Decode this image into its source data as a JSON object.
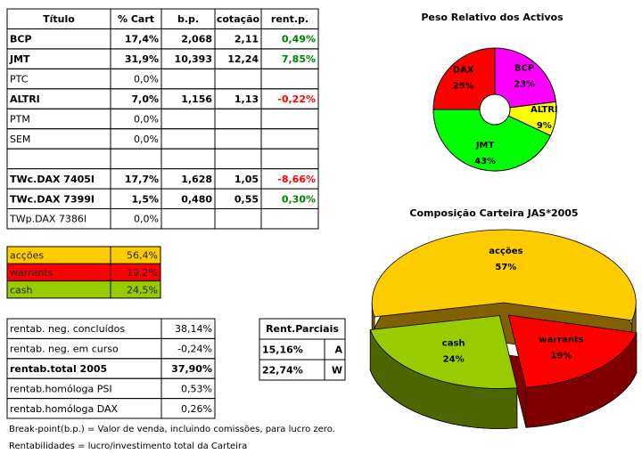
{
  "chart_data": [
    {
      "type": "donut",
      "title": "Peso Relativo dos Activos",
      "categories": [
        "BCP",
        "ALTRI",
        "JMT",
        "DAX"
      ],
      "values": [
        23,
        9,
        43,
        25
      ],
      "value_labels": [
        "23%",
        "9%",
        "43%",
        "25%"
      ],
      "colors": [
        "#ff00ff",
        "#ffff00",
        "#00ff00",
        "#ff0000"
      ]
    },
    {
      "type": "pie3d",
      "title": "Composição Carteira JAS*2005",
      "categories": [
        "warrants",
        "cash",
        "acções"
      ],
      "values": [
        19,
        24,
        57
      ],
      "value_labels": [
        "19%",
        "24%",
        "57%"
      ],
      "colors": [
        "#ff0000",
        "#99cc00",
        "#ffcc00"
      ],
      "side_colors": [
        "#800000",
        "#4d6600",
        "#806000"
      ]
    }
  ],
  "holdings": {
    "header": [
      "Título",
      "% Cart",
      "b.p.",
      "cotação",
      "rent.p."
    ],
    "rows": [
      [
        "BCP",
        "17,4%",
        "2,068",
        "2,11",
        "0,49%"
      ],
      [
        "JMT",
        "31,9%",
        "10,393",
        "12,24",
        "7,85%"
      ],
      [
        "PTC",
        "0,0%",
        null,
        null,
        null
      ],
      [
        "ALTRI",
        "7,0%",
        "1,156",
        "1,13",
        "-0,22%"
      ],
      [
        "PTM",
        "0,0%",
        null,
        null,
        null
      ],
      [
        "SEM",
        "0,0%",
        null,
        null,
        null
      ],
      [
        null,
        null,
        null,
        null,
        null
      ],
      [
        "TWc.DAX 7405I",
        "17,7%",
        "1,628",
        "1,05",
        "-8,66%"
      ],
      [
        "TWc.DAX 7399I",
        "1,5%",
        "0,480",
        "0,55",
        "0,30%"
      ],
      [
        "TWp.DAX 7386I",
        "0,0%",
        null,
        null,
        null
      ]
    ]
  },
  "allocation": {
    "rows": [
      [
        "acções",
        "56,4%"
      ],
      [
        "warrants",
        "19,2%"
      ],
      [
        "cash",
        "24,5%"
      ]
    ],
    "colors": [
      "#ffcc00",
      "#ff0000",
      "#99cc00"
    ]
  },
  "returns": {
    "rows": [
      [
        "rentab. neg. concluídos",
        "38,14%"
      ],
      [
        "rentab. neg. em curso",
        "-0,24%"
      ],
      [
        "rentab.total 2005",
        "37,90%"
      ],
      [
        "rentab.homóloga PSI",
        "0,53%"
      ],
      [
        "rentab.homóloga DAX",
        "0,26%"
      ]
    ]
  },
  "partial": {
    "header": "Rent.Parciais",
    "rows": [
      [
        "15,16%",
        "A"
      ],
      [
        "22,74%",
        "W"
      ]
    ]
  },
  "notes": [
    "Break-point(b.p.) = Valor de venda, incluindo comissões, para lucro zero.",
    "Rentabilidades = lucro/investimento total da Carteira"
  ]
}
